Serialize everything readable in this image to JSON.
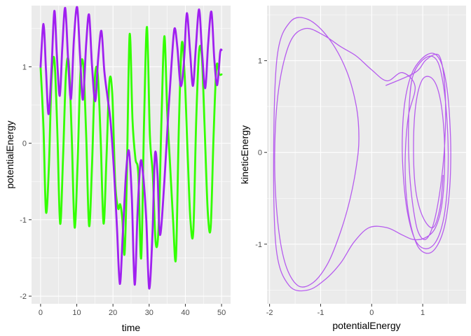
{
  "chart_data": [
    {
      "type": "line",
      "xlabel": "time",
      "ylabel": "potentialEnergy",
      "xlim": [
        -2.5,
        52.5
      ],
      "ylim": [
        -2.1,
        1.8
      ],
      "xticks": [
        0,
        10,
        20,
        30,
        40,
        50
      ],
      "yticks": [
        -2,
        -1,
        0,
        1
      ],
      "grid": true,
      "legend": "none",
      "series": [
        {
          "color": "#a020f0",
          "x": [
            0,
            0.8,
            1.5,
            2.2,
            3,
            3.8,
            4.5,
            5.3,
            6,
            6.8,
            7.6,
            8.4,
            9.2,
            10.1,
            10.9,
            11.7,
            12.6,
            13.4,
            14.2,
            15.1,
            15.9,
            16.8,
            17.6,
            18.5,
            19.3,
            20.2,
            21.1,
            21.9,
            22.7,
            23.6,
            24.4,
            25.2,
            26,
            26.8,
            27.6,
            28.3,
            29.2,
            30,
            30.9,
            31.6,
            32.3,
            33,
            34.2,
            35.3,
            36.2,
            37,
            37.8,
            38.7,
            39.6,
            40.4,
            41.3,
            42.1,
            42.9,
            43.8,
            44.6,
            45.5,
            46.3,
            47.2,
            48,
            48.8,
            49.6,
            50
          ],
          "y": [
            1.0,
            1.56,
            0.95,
            0.38,
            0.95,
            1.73,
            1.15,
            0.62,
            1.25,
            1.77,
            1.1,
            0.58,
            1.35,
            1.78,
            1.15,
            0.57,
            1.3,
            1.68,
            1.02,
            0.55,
            1.1,
            1.47,
            0.95,
            0.6,
            0.3,
            -0.3,
            -1.1,
            -1.84,
            -1.2,
            -0.4,
            -0.1,
            -0.7,
            -1.85,
            -0.9,
            -0.25,
            -0.4,
            -1.0,
            -1.9,
            -1.2,
            -0.15,
            -0.4,
            -1.2,
            -0.5,
            0.4,
            1.05,
            1.5,
            1.25,
            0.75,
            1.05,
            1.7,
            1.2,
            0.75,
            1.25,
            1.75,
            1.2,
            0.72,
            1.3,
            1.72,
            1.1,
            0.76,
            1.18,
            1.22
          ]
        },
        {
          "color": "#33ff00",
          "x": [
            0,
            0.8,
            1.5,
            2.3,
            3,
            3.8,
            4.6,
            5.4,
            6.2,
            7,
            7.8,
            8.6,
            9.4,
            10.2,
            11,
            11.8,
            12.6,
            13.4,
            14.2,
            15,
            15.8,
            16.6,
            17.4,
            18.2,
            19,
            19.8,
            20.6,
            21.4,
            22,
            22.6,
            23.2,
            23.8,
            24.6,
            25.4,
            26.2,
            27,
            27.8,
            28.6,
            29.4,
            30.2,
            31,
            31.8,
            32.6,
            33.4,
            34.2,
            35,
            35.8,
            36.6,
            37.4,
            38.2,
            39,
            39.8,
            40.6,
            41.4,
            42.2,
            43,
            43.8,
            44.6,
            45.4,
            46.2,
            47,
            47.8,
            48.6,
            49.4,
            50
          ],
          "y": [
            1.0,
            0.2,
            -0.9,
            -0.3,
            0.8,
            1.1,
            0.2,
            -1.05,
            -0.2,
            0.9,
            1.05,
            0.1,
            -1.1,
            -0.3,
            0.9,
            1.02,
            0.1,
            -1.08,
            -0.3,
            0.85,
            0.9,
            0.05,
            -1.05,
            -0.2,
            0.8,
            0.65,
            -0.5,
            -0.85,
            -0.8,
            -1.0,
            -1.45,
            -0.5,
            1.42,
            0.3,
            -0.2,
            -0.4,
            -1.5,
            0.3,
            1.52,
            0.1,
            -0.4,
            -1.3,
            -1.1,
            0.3,
            1.4,
            0.4,
            -0.3,
            -1.0,
            -1.5,
            0.2,
            1.3,
            0.9,
            -0.1,
            -1.0,
            -1.15,
            0.3,
            1.2,
            1.1,
            0.1,
            -0.9,
            -1.1,
            0.1,
            1.0,
            0.9,
            0.9
          ]
        }
      ]
    },
    {
      "type": "line",
      "xlabel": "potentialEnergy",
      "ylabel": "kineticEnergy",
      "xlim": [
        -2.05,
        1.85
      ],
      "ylim": [
        -1.65,
        1.6
      ],
      "xticks": [
        -2,
        -1,
        0,
        1
      ],
      "yticks": [
        -1,
        0,
        1
      ],
      "grid": true,
      "legend": "none",
      "series": [
        {
          "color": "#a020f0",
          "x": [
            0.28,
            0.85,
            1.05,
            1.25,
            1.35,
            1.42,
            1.45,
            1.42,
            1.33,
            1.2,
            1.05,
            0.9,
            0.8,
            0.74,
            0.72,
            0.74,
            0.8,
            0.95,
            1.15,
            1.3,
            1.4,
            1.47,
            1.5,
            1.48,
            1.4,
            1.25,
            1.05,
            0.85,
            0.7,
            0.62,
            0.6,
            0.65,
            0.78,
            0.98,
            1.2,
            1.36,
            1.47,
            1.53,
            1.55,
            1.52,
            1.43,
            1.28,
            1.1,
            0.9,
            0.75,
            0.67,
            0.66,
            0.72,
            0.85,
            0.6,
            0.3,
            0.0,
            -0.3,
            -0.6,
            -0.95,
            -1.3,
            -1.6,
            -1.82,
            -1.9,
            -1.85,
            -1.7,
            -1.45,
            -1.15,
            -0.85,
            -0.6,
            -0.42,
            -0.3,
            -0.25,
            -0.3,
            -0.5,
            -0.85,
            -1.25,
            -1.6,
            -1.85,
            -1.92,
            -1.87,
            -1.62,
            -1.25,
            -0.9,
            -0.6,
            -0.35,
            -0.05,
            0.3,
            0.6,
            0.82,
            1.05,
            1.25,
            1.38,
            1.43,
            1.4,
            1.3,
            1.15,
            0.98,
            0.86,
            0.82,
            0.86,
            1.0,
            1.2,
            1.34,
            1.4
          ],
          "y": [
            0.73,
            0.87,
            1.0,
            1.07,
            1.02,
            0.8,
            0.45,
            0.0,
            -0.45,
            -0.8,
            -0.95,
            -0.85,
            -0.55,
            -0.2,
            0.2,
            0.55,
            0.82,
            0.98,
            1.05,
            0.98,
            0.75,
            0.4,
            0.0,
            -0.4,
            -0.75,
            -0.98,
            -1.05,
            -0.95,
            -0.65,
            -0.25,
            0.15,
            0.55,
            0.85,
            1.02,
            1.08,
            0.98,
            0.72,
            0.35,
            -0.05,
            -0.45,
            -0.8,
            -1.02,
            -1.1,
            -1.02,
            -0.75,
            -0.4,
            0.0,
            0.4,
            0.72,
            0.87,
            0.78,
            0.9,
            1.05,
            1.15,
            1.28,
            1.35,
            1.2,
            0.7,
            0.0,
            -0.7,
            -1.2,
            -1.45,
            -1.42,
            -1.2,
            -0.85,
            -0.5,
            -0.15,
            0.15,
            0.5,
            0.9,
            1.25,
            1.45,
            1.42,
            1.05,
            0.0,
            -1.05,
            -1.45,
            -1.5,
            -1.38,
            -1.2,
            -0.98,
            -0.82,
            -0.82,
            -0.9,
            -0.95,
            -0.93,
            -0.82,
            -0.55,
            -0.1,
            0.35,
            0.68,
            0.82,
            0.78,
            0.5,
            0.05,
            -0.4,
            -0.7,
            -0.82,
            -0.6,
            -0.25
          ]
        }
      ]
    }
  ]
}
